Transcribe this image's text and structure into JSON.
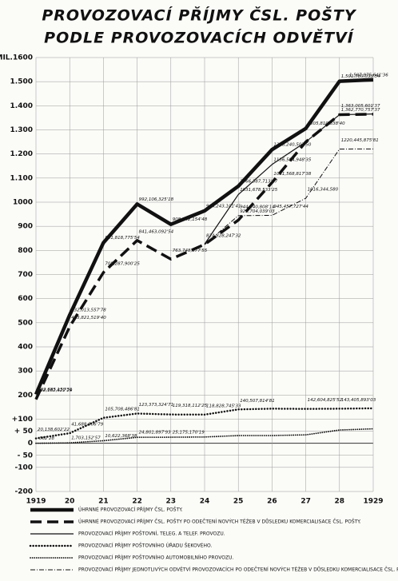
{
  "chart_data": {
    "type": "line",
    "title": "PROVOZOVACÍ PŘÍJMY ČSL. POŠTY",
    "subtitle": "PODLE PROVOZOVACÍCH ODVĚTVÍ",
    "x": [
      1919,
      1920,
      1921,
      1922,
      1923,
      1924,
      1925,
      1926,
      1927,
      1928,
      1929
    ],
    "xlim": [
      1919,
      1929
    ],
    "xticks": [
      1919,
      {
        "value": 1920,
        "label": "20"
      },
      {
        "value": 1921,
        "label": "21"
      },
      {
        "value": 1922,
        "label": "22"
      },
      {
        "value": 1923,
        "label": "23"
      },
      {
        "value": 1924,
        "label": "24"
      },
      {
        "value": 1925,
        "label": "25"
      },
      {
        "value": 1926,
        "label": "26"
      },
      {
        "value": 1927,
        "label": "27"
      },
      {
        "value": 1928,
        "label": "28"
      },
      1929
    ],
    "ylim": [
      -200,
      1600
    ],
    "yticks": [
      -200,
      {
        "value": -100,
        "label": "-100"
      },
      {
        "value": -50,
        "label": "- 50"
      },
      0,
      {
        "value": 50,
        "label": "+ 50"
      },
      {
        "value": 100,
        "label": "+100"
      },
      200,
      300,
      400,
      500,
      600,
      700,
      800,
      900,
      1000,
      {
        "value": 1100,
        "label": "1.100"
      },
      {
        "value": 1200,
        "label": "1.200"
      },
      {
        "value": 1300,
        "label": "1.300"
      },
      {
        "value": 1400,
        "label": "1.400"
      },
      {
        "value": 1500,
        "label": "1.500"
      },
      {
        "value": 1600,
        "label": "MIL.1600"
      }
    ],
    "grid": true,
    "series": [
      {
        "name": "ÚHRNNÉ PROVOZOVACÍ PŘÍJMY ČSL. POŠTY.",
        "color": "#111111",
        "style": "thick",
        "values": [
          202.685,
          532.014,
          831.819,
          992.106,
          908.242,
          964.243,
          1066.388,
          1218.241,
          1305.81,
          1501.78,
          1507.976
        ],
        "value_labels": [
          "202,685,150'51",
          "532,013,557'78",
          "831,818,775'54",
          "992,106,325'18",
          "908,242,154'48",
          "964,243,101'41",
          "1066,387,713'67",
          "1218,240,503'50",
          "1305,810,338'40",
          "1,501,780,033'54",
          "1,507,975,641'36"
        ]
      },
      {
        "name": "ÚHRNNÉ PROVOZOVACÍ PŘÍJMY ČSL. POŠTY PO ODEČTENÍ NOVÝCH TĚŽEB V DŮSLEDKU KOMERCIALISACE ČSL. POŠTY.",
        "color": "#111111",
        "style": "dashed",
        "values": [
          182.183,
          483.822,
          708.288,
          841.463,
          763.749,
          824.828,
          925.704,
          1081.569,
          1250,
          1363.006,
          1365
        ],
        "value_labels": [
          "182,182,622'29",
          "483,821,519'40",
          "708,287,900'25",
          "841,463,092'54",
          "763,748,877'55",
          "824,828,247'32",
          "925,704,039'03",
          "1081,568,817'38",
          null,
          "1,363,005,601'37",
          null
        ]
      },
      {
        "name": "PROVOZOVACÍ PŘÍJMY POŠTOVNÍ, TELEG. A TELEF. PROVOZU.",
        "color": "#111111",
        "style": "thin",
        "values": [
          null,
          null,
          null,
          null,
          null,
          826,
          1031.679,
          1156.585,
          1250,
          1362.771,
          1366
        ],
        "value_labels": [
          null,
          null,
          null,
          null,
          null,
          null,
          "1031,678,533'25",
          "1156,584,948'35",
          null,
          "1,362,770,757'37",
          null
        ]
      },
      {
        "name": "PROVOZOVACÍ PŘÍJMY POŠTOVNÍHO ÚŘADU ŠEKOVÉHO.",
        "color": "#111111",
        "style": "circles",
        "values": [
          20.139,
          41.689,
          105.708,
          123.373,
          119.318,
          118.829,
          140.508,
          143.5,
          142.605,
          143.406,
          145
        ],
        "value_labels": [
          "20,138,602'22",
          "41,688,806'79",
          "105,708,486'81",
          "123,373,324'71",
          "119,318,112'25",
          "118,828,745'33",
          "140,507,814'81",
          null,
          "142,604,825'52",
          "143,405,893'03",
          null
        ]
      },
      {
        "name": "PROVOZOVACÍ PŘÍJMY POŠTOVNÍHO AUTOMOBILNÍHO PROVOZU.",
        "color": "#111111",
        "style": "dots",
        "values": [
          -0.000362,
          1.703,
          10.622,
          24.802,
          25.175,
          26,
          32,
          32,
          35,
          55,
          60
        ],
        "value_labels": [
          "-362'28",
          "1,703,152'57",
          "10,622,368'38",
          "24,801,897'93",
          "25,175,170'19",
          null,
          null,
          null,
          null,
          null,
          null
        ]
      },
      {
        "name": "PROVOZOVACÍ PŘÍJMY JEDNOTLIVÝCH ODVĚTVÍ PROVOZOVACÍCH PO ODEČTENÍ NOVÝCH TĚŽEB V DŮSLEDKU KOMERCIALISACE ČSL. POŠTY.",
        "color": "#111111",
        "style": "dashdot",
        "values": [
          null,
          null,
          null,
          null,
          null,
          824,
          944.141,
          945.458,
          1016.345,
          1220.446,
          1221
        ],
        "value_labels": [
          null,
          null,
          null,
          null,
          null,
          null,
          "944,140,808'14",
          "945,457,727'44",
          "1016,344,580",
          "1220,445,875'81",
          null
        ]
      }
    ]
  }
}
